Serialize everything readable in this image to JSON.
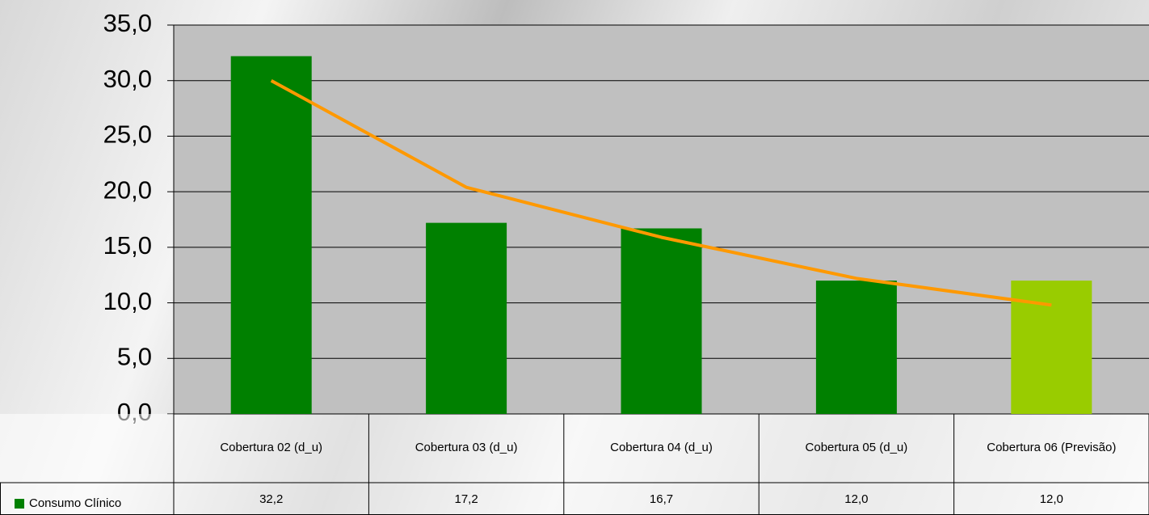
{
  "chart_data": {
    "type": "bar",
    "categories": [
      "Cobertura 02 (d_u)",
      "Cobertura 03 (d_u)",
      "Cobertura 04 (d_u)",
      "Cobertura 05 (d_u)",
      "Cobertura 06 (Previsão)"
    ],
    "series": [
      {
        "name": "Consumo Clínico",
        "color": "#008000",
        "colors": [
          "#008000",
          "#008000",
          "#008000",
          "#008000",
          "#99cc00"
        ],
        "values": [
          32.2,
          17.2,
          16.7,
          12.0,
          12.0
        ],
        "value_labels": [
          "32,2",
          "17,2",
          "16,7",
          "12,0",
          "12,0"
        ]
      }
    ],
    "trendline": {
      "color": "#ff9900",
      "values": [
        30.0,
        20.4,
        15.9,
        12.2,
        9.8
      ]
    },
    "ylim": [
      0,
      35
    ],
    "yticks": [
      {
        "value": 0,
        "label": "0,0"
      },
      {
        "value": 5,
        "label": "5,0"
      },
      {
        "value": 10,
        "label": "10,0"
      },
      {
        "value": 15,
        "label": "15,0"
      },
      {
        "value": 20,
        "label": "20,0"
      },
      {
        "value": 25,
        "label": "25,0"
      },
      {
        "value": 30,
        "label": "30,0"
      },
      {
        "value": 35,
        "label": "35,0"
      }
    ],
    "grid": true
  }
}
